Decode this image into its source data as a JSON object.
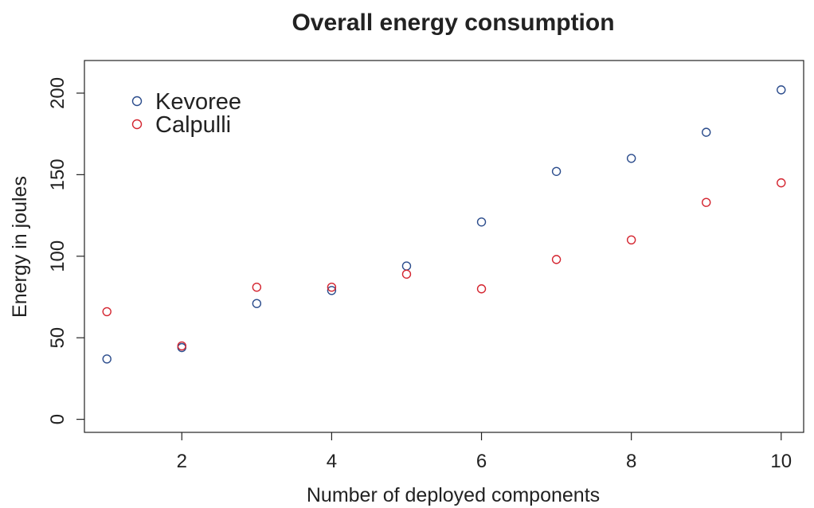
{
  "chart_data": {
    "type": "scatter",
    "title": "Overall energy consumption",
    "xlabel": "Number of deployed components",
    "ylabel": "Energy in joules",
    "xlim": [
      0.7,
      10.3
    ],
    "ylim": [
      -8,
      220
    ],
    "x_ticks": [
      2,
      4,
      6,
      8,
      10
    ],
    "y_ticks": [
      0,
      50,
      100,
      150,
      200
    ],
    "grid": false,
    "legend_position": "top-left",
    "x": [
      1,
      2,
      3,
      4,
      5,
      6,
      7,
      8,
      9,
      10
    ],
    "series": [
      {
        "name": "Kevoree",
        "color": "#2b4c8c",
        "marker": "open-circle",
        "values": [
          37,
          44,
          71,
          79,
          94,
          121,
          152,
          160,
          176,
          202
        ]
      },
      {
        "name": "Calpulli",
        "color": "#d42530",
        "marker": "open-circle",
        "values": [
          66,
          45,
          81,
          81,
          89,
          80,
          98,
          110,
          133,
          145
        ]
      }
    ]
  }
}
